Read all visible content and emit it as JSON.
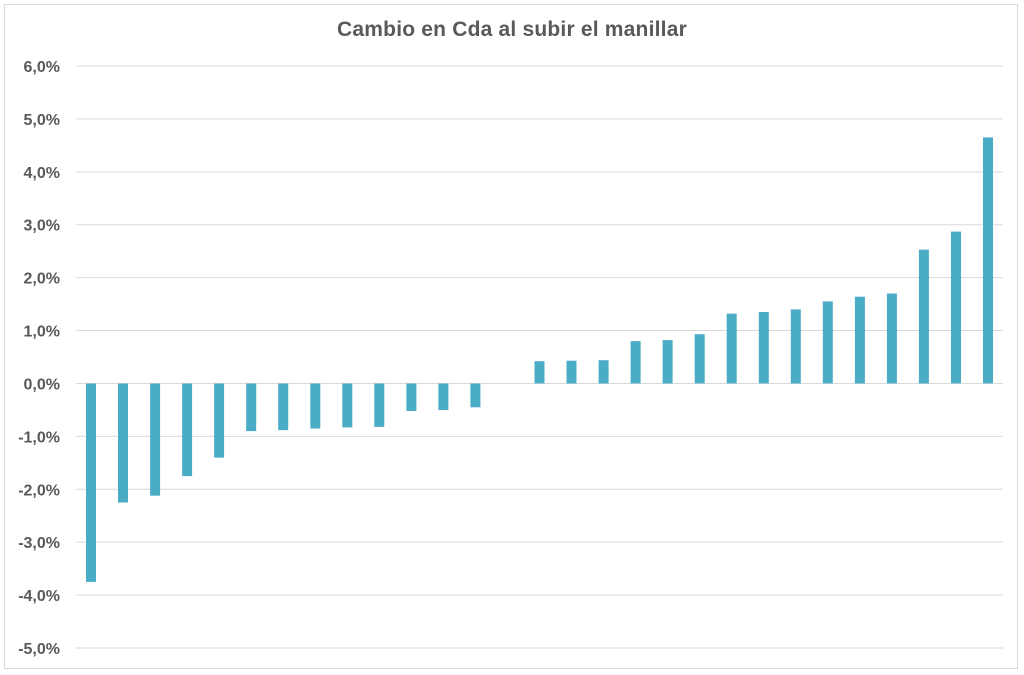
{
  "chart_data": {
    "type": "bar",
    "title": "Cambio en Cda al subir el manillar",
    "xlabel": "",
    "ylabel": "",
    "ylim": [
      -5.0,
      6.0
    ],
    "yticks": [
      6.0,
      5.0,
      4.0,
      3.0,
      2.0,
      1.0,
      0.0,
      -1.0,
      -2.0,
      -3.0,
      -4.0,
      -5.0
    ],
    "ytick_labels": [
      "6,0%",
      "5,0%",
      "4,0%",
      "3,0%",
      "2,0%",
      "1,0%",
      "0,0%",
      "-1,0%",
      "-2,0%",
      "-3,0%",
      "-4,0%",
      "-5,0%"
    ],
    "value_unit": "%",
    "values": [
      -3.75,
      -2.25,
      -2.12,
      -1.75,
      -1.4,
      -0.9,
      -0.88,
      -0.85,
      -0.83,
      -0.82,
      -0.52,
      -0.5,
      -0.45,
      null,
      0.42,
      0.43,
      0.44,
      0.8,
      0.82,
      0.93,
      1.32,
      1.35,
      1.4,
      1.55,
      1.64,
      1.7,
      2.53,
      2.87,
      4.65
    ],
    "grid": true,
    "legend": "none",
    "colors": {
      "bar": "#4bacc6",
      "grid": "#d9d9d9",
      "text": "#595959"
    }
  }
}
